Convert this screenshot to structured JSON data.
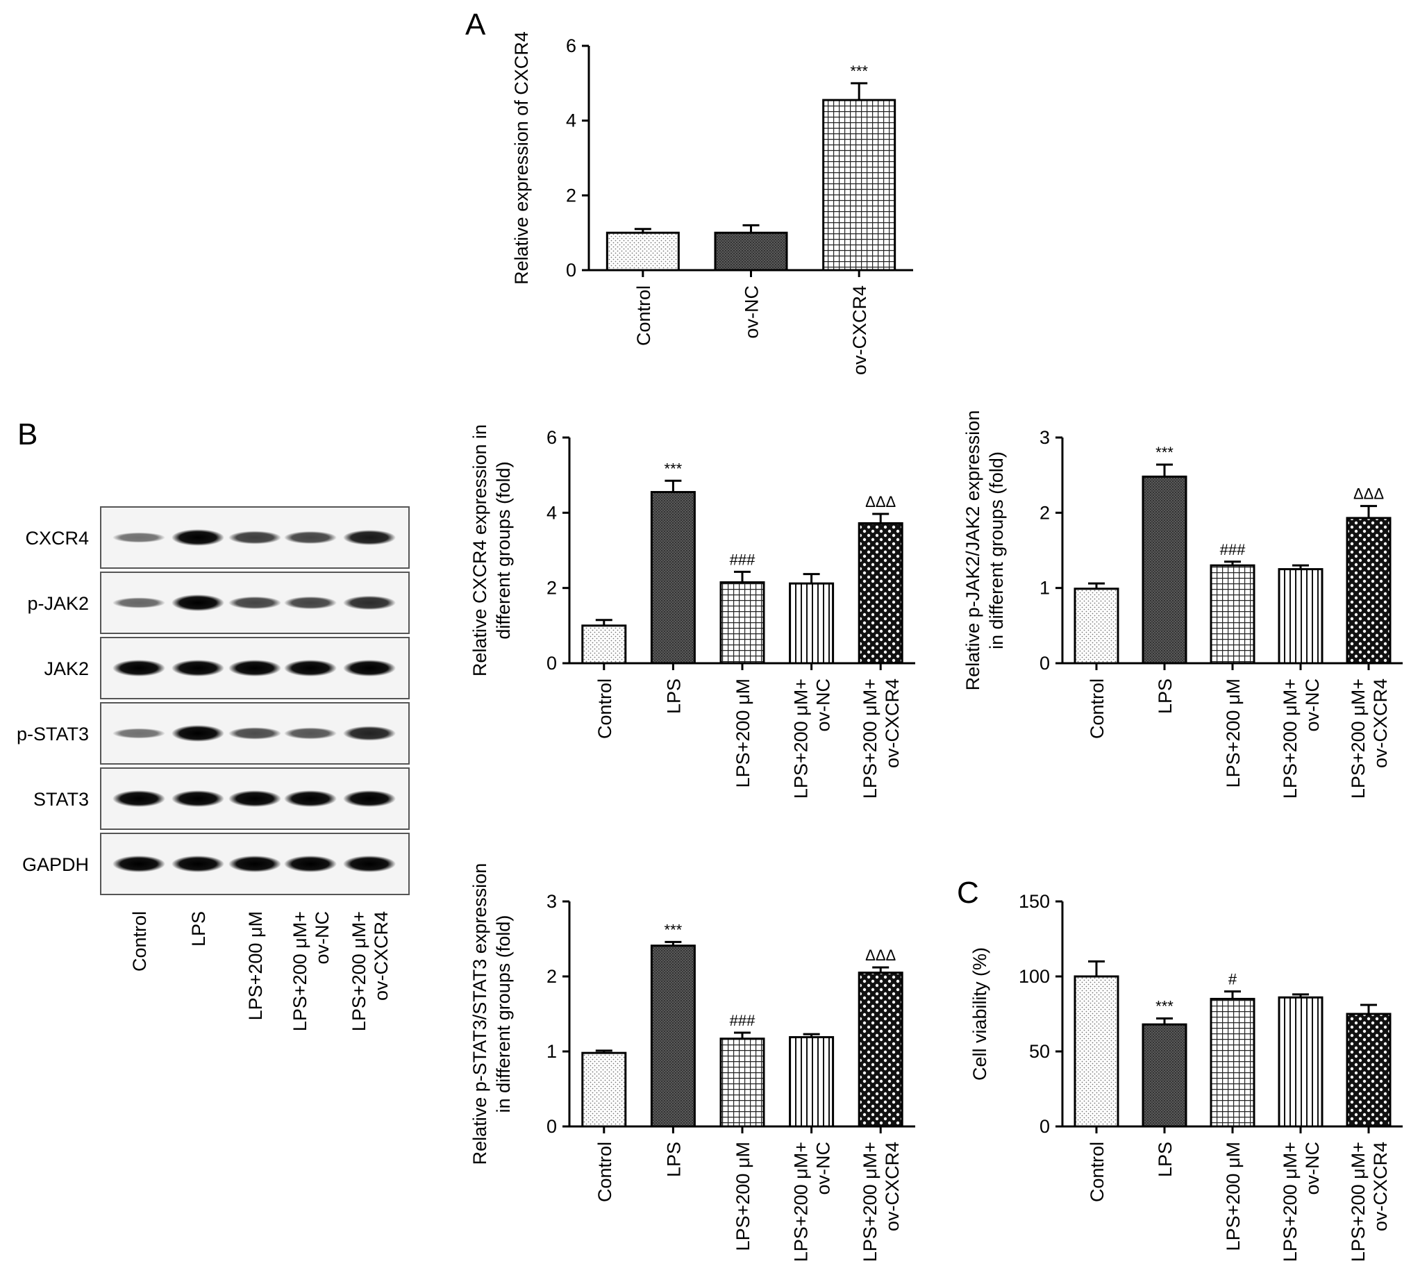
{
  "panels": {
    "A": "A",
    "B": "B",
    "C": "C"
  },
  "blot": {
    "proteins": [
      "CXCR4",
      "p-JAK2",
      "JAK2",
      "p-STAT3",
      "STAT3",
      "GAPDH"
    ],
    "lanes": [
      [
        "Control"
      ],
      [
        "LPS"
      ],
      [
        "LPS+200 μM"
      ],
      [
        "LPS+200 μM+",
        "ov-NC"
      ],
      [
        "LPS+200 μM+",
        "ov-CXCR4"
      ]
    ],
    "band_intensity": [
      [
        0.35,
        1.0,
        0.65,
        0.6,
        0.85
      ],
      [
        0.4,
        1.0,
        0.6,
        0.6,
        0.75
      ],
      [
        1.0,
        1.0,
        1.0,
        1.0,
        1.0
      ],
      [
        0.35,
        1.0,
        0.55,
        0.5,
        0.8
      ],
      [
        1.0,
        1.0,
        1.0,
        1.0,
        1.0
      ],
      [
        1.0,
        1.0,
        1.0,
        1.0,
        1.0
      ]
    ]
  },
  "chart_data": [
    {
      "id": "A",
      "type": "bar",
      "ylabel": "Relative expression of CXCR4",
      "ylim": [
        0,
        6
      ],
      "yticks": [
        "0",
        "2",
        "4",
        "6"
      ],
      "categories": [
        [
          "Control"
        ],
        [
          "ov-NC"
        ],
        [
          "ov-CXCR4"
        ]
      ],
      "values": [
        1.0,
        1.0,
        4.55
      ],
      "errors": [
        0.1,
        0.2,
        0.45
      ],
      "patterns": [
        "dots",
        "dense",
        "grid"
      ],
      "annotations": [
        "",
        "",
        "***"
      ]
    },
    {
      "id": "B1",
      "type": "bar",
      "ylabel": [
        "Relative CXCR4 expression in",
        "different groups (fold)"
      ],
      "ylim": [
        0,
        6
      ],
      "yticks": [
        "0",
        "2",
        "4",
        "6"
      ],
      "categories": [
        [
          "Control"
        ],
        [
          "LPS"
        ],
        [
          "LPS+200 μM"
        ],
        [
          "LPS+200 μM+",
          "ov-NC"
        ],
        [
          "LPS+200 μM+",
          "ov-CXCR4"
        ]
      ],
      "values": [
        1.0,
        4.55,
        2.15,
        2.12,
        3.72
      ],
      "errors": [
        0.15,
        0.3,
        0.28,
        0.25,
        0.25
      ],
      "patterns": [
        "dots",
        "dense",
        "grid",
        "vlines",
        "checker"
      ],
      "annotations": [
        "",
        "***",
        "###",
        "",
        "ΔΔΔ"
      ]
    },
    {
      "id": "B2",
      "type": "bar",
      "ylabel": [
        "Relative p-JAK2/JAK2 expression",
        "in different groups (fold)"
      ],
      "ylim": [
        0,
        3
      ],
      "yticks": [
        "0",
        "1",
        "2",
        "3"
      ],
      "categories": [
        [
          "Control"
        ],
        [
          "LPS"
        ],
        [
          "LPS+200 μM"
        ],
        [
          "LPS+200 μM+",
          "ov-NC"
        ],
        [
          "LPS+200 μM+",
          "ov-CXCR4"
        ]
      ],
      "values": [
        0.99,
        2.48,
        1.3,
        1.25,
        1.93
      ],
      "errors": [
        0.07,
        0.16,
        0.05,
        0.05,
        0.16
      ],
      "patterns": [
        "dots",
        "dense",
        "grid",
        "vlines",
        "checker"
      ],
      "annotations": [
        "",
        "***",
        "###",
        "",
        "ΔΔΔ"
      ]
    },
    {
      "id": "B3",
      "type": "bar",
      "ylabel": [
        "Relative p-STAT3/STAT3 expression",
        "in different groups (fold)"
      ],
      "ylim": [
        0,
        3
      ],
      "yticks": [
        "0",
        "1",
        "2",
        "3"
      ],
      "categories": [
        [
          "Control"
        ],
        [
          "LPS"
        ],
        [
          "LPS+200 μM"
        ],
        [
          "LPS+200 μM+",
          "ov-NC"
        ],
        [
          "LPS+200 μM+",
          "ov-CXCR4"
        ]
      ],
      "values": [
        0.98,
        2.41,
        1.17,
        1.19,
        2.05
      ],
      "errors": [
        0.03,
        0.05,
        0.08,
        0.04,
        0.07
      ],
      "patterns": [
        "dots",
        "dense",
        "grid",
        "vlines",
        "checker"
      ],
      "annotations": [
        "",
        "***",
        "###",
        "",
        "ΔΔΔ"
      ]
    },
    {
      "id": "C",
      "type": "bar",
      "ylabel": "Cell viability (%)",
      "ylim": [
        0,
        150
      ],
      "yticks": [
        "0",
        "50",
        "100",
        "150"
      ],
      "categories": [
        [
          "Control"
        ],
        [
          "LPS"
        ],
        [
          "LPS+200 μM"
        ],
        [
          "LPS+200 μM+",
          "ov-NC"
        ],
        [
          "LPS+200 μM+",
          "ov-CXCR4"
        ]
      ],
      "values": [
        100,
        68,
        85,
        86,
        75
      ],
      "errors": [
        10,
        4,
        5,
        2,
        6
      ],
      "patterns": [
        "dots",
        "dense",
        "grid",
        "vlines",
        "checker"
      ],
      "annotations": [
        "",
        "***",
        "#",
        "",
        ""
      ]
    }
  ]
}
